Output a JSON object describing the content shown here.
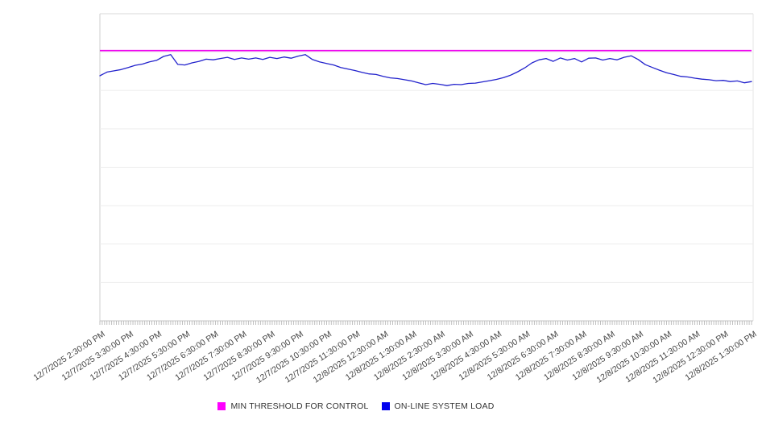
{
  "chart_data": {
    "type": "line",
    "title": "",
    "x_axis": {
      "tick_labels": [
        "12/7/2025 2:30:00 PM",
        "12/7/2025 3:30:00 PM",
        "12/7/2025 4:30:00 PM",
        "12/7/2025 5:30:00 PM",
        "12/7/2025 6:30:00 PM",
        "12/7/2025 7:30:00 PM",
        "12/7/2025 8:30:00 PM",
        "12/7/2025 9:30:00 PM",
        "12/7/2025 10:30:00 PM",
        "12/7/2025 11:30:00 PM",
        "12/8/2025 12:30:00 AM",
        "12/8/2025 1:30:00 AM",
        "12/8/2025 2:30:00 AM",
        "12/8/2025 3:30:00 AM",
        "12/8/2025 4:30:00 AM",
        "12/8/2025 5:30:00 AM",
        "12/8/2025 6:30:00 AM",
        "12/8/2025 7:30:00 AM",
        "12/8/2025 8:30:00 AM",
        "12/8/2025 9:30:00 AM",
        "12/8/2025 10:30:00 AM",
        "12/8/2025 11:30:00 AM",
        "12/8/2025 12:30:00 PM",
        "12/8/2025 1:30:00 PM"
      ],
      "minor_tick_interval_minutes": 5,
      "label_rotation_deg": -33
    },
    "y_axis": {
      "labels_visible": false,
      "ylim": [
        0,
        100
      ],
      "gridline_divisions": 8,
      "grid": true
    },
    "legend_position": "bottom-center",
    "series": [
      {
        "name": "MIN THRESHOLD FOR CONTROL",
        "kind": "constant-threshold-line",
        "color": "#ee00ee",
        "value": 88
      },
      {
        "name": "ON-LINE SYSTEM LOAD",
        "kind": "line",
        "color": "#2222cc",
        "sample_interval_minutes": 15,
        "values": [
          79.8,
          81.0,
          81.4,
          81.8,
          82.5,
          83.2,
          83.6,
          84.3,
          84.8,
          86.1,
          86.7,
          83.5,
          83.3,
          84.0,
          84.5,
          85.2,
          85.0,
          85.4,
          85.8,
          85.1,
          85.6,
          85.2,
          85.6,
          85.1,
          85.8,
          85.4,
          85.9,
          85.5,
          86.2,
          86.7,
          85.1,
          84.3,
          83.8,
          83.3,
          82.5,
          82.0,
          81.5,
          80.9,
          80.4,
          80.2,
          79.6,
          79.1,
          78.9,
          78.5,
          78.1,
          77.5,
          76.9,
          77.3,
          77.0,
          76.6,
          77.0,
          76.9,
          77.3,
          77.4,
          77.8,
          78.2,
          78.6,
          79.2,
          80.0,
          81.1,
          82.4,
          84.0,
          85.0,
          85.4,
          84.5,
          85.6,
          84.9,
          85.4,
          84.3,
          85.5,
          85.6,
          84.9,
          85.4,
          85.0,
          85.8,
          86.3,
          85.1,
          83.4,
          82.5,
          81.6,
          80.8,
          80.2,
          79.6,
          79.4,
          79.0,
          78.7,
          78.5,
          78.2,
          78.3,
          77.9,
          78.1,
          77.5,
          77.9
        ]
      }
    ]
  },
  "legend": {
    "items": [
      {
        "label": "MIN THRESHOLD FOR CONTROL",
        "color": "#ff00ff"
      },
      {
        "label": "ON-LINE SYSTEM LOAD",
        "color": "#0000ee"
      }
    ]
  }
}
